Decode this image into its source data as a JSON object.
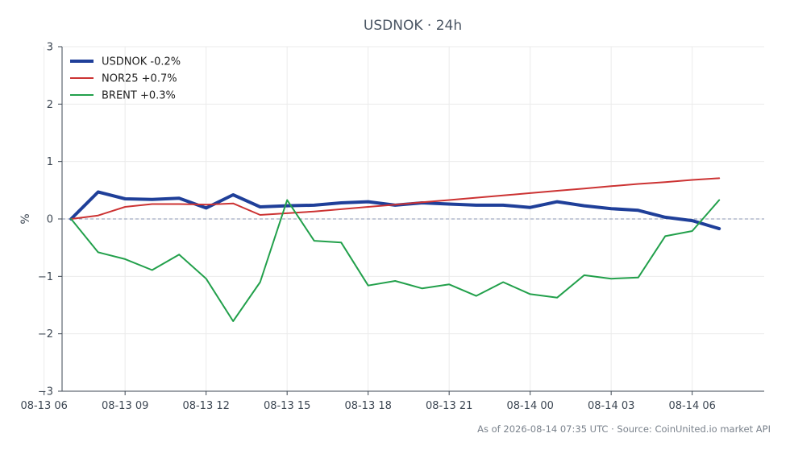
{
  "chart_data": {
    "type": "line",
    "title": "USDNOK · 24h",
    "ylabel": "%",
    "xlabel": "",
    "ylim": [
      -3,
      3
    ],
    "yticks": [
      -3,
      -2,
      -1,
      0,
      1,
      2,
      3
    ],
    "ytick_labels": [
      "−3",
      "−2",
      "−1",
      "0",
      "1",
      "2",
      "3"
    ],
    "xlim": [
      "2026-08-13 06:40",
      "2026-08-14 08:40"
    ],
    "xticks": [
      "2026-08-13 06:00",
      "2026-08-13 09:00",
      "2026-08-13 12:00",
      "2026-08-13 15:00",
      "2026-08-13 18:00",
      "2026-08-13 21:00",
      "2026-08-14 00:00",
      "2026-08-14 03:00",
      "2026-08-14 06:00"
    ],
    "xtick_labels": [
      "08-13 06",
      "08-13 09",
      "08-13 12",
      "08-13 15",
      "08-13 18",
      "08-13 21",
      "08-14 00",
      "08-14 03",
      "08-14 06"
    ],
    "grid": true,
    "legend_position": "top-left",
    "zero_line": 0,
    "x": [
      "2026-08-13 07:00",
      "2026-08-13 08:00",
      "2026-08-13 09:00",
      "2026-08-13 10:00",
      "2026-08-13 11:00",
      "2026-08-13 12:00",
      "2026-08-13 13:00",
      "2026-08-13 14:00",
      "2026-08-13 15:00",
      "2026-08-13 16:00",
      "2026-08-13 17:00",
      "2026-08-13 18:00",
      "2026-08-13 19:00",
      "2026-08-13 20:00",
      "2026-08-13 21:00",
      "2026-08-13 22:00",
      "2026-08-13 23:00",
      "2026-08-14 00:00",
      "2026-08-14 01:00",
      "2026-08-14 02:00",
      "2026-08-14 03:00",
      "2026-08-14 04:00",
      "2026-08-14 05:00",
      "2026-08-14 06:00",
      "2026-08-14 07:00"
    ],
    "series": [
      {
        "name": "USDNOK -0.2%",
        "color": "#1f3f99",
        "width": 4,
        "values": [
          0.0,
          0.47,
          0.35,
          0.34,
          0.36,
          0.19,
          0.42,
          0.21,
          0.23,
          0.24,
          0.28,
          0.3,
          0.24,
          0.28,
          0.26,
          0.24,
          0.24,
          0.2,
          0.3,
          0.23,
          0.18,
          0.15,
          0.03,
          -0.03,
          -0.17
        ]
      },
      {
        "name": "NOR25 +0.7%",
        "color": "#cc3333",
        "width": 2,
        "values": [
          0.0,
          0.06,
          0.21,
          0.26,
          0.26,
          0.25,
          0.27,
          0.07,
          0.1,
          0.13,
          0.17,
          0.21,
          0.25,
          0.29,
          0.33,
          0.37,
          0.41,
          0.45,
          0.49,
          0.53,
          0.57,
          0.61,
          0.64,
          0.68,
          0.71
        ]
      },
      {
        "name": "BRENT +0.3%",
        "color": "#22a04b",
        "width": 2,
        "values": [
          0.0,
          -0.58,
          -0.7,
          -0.89,
          -0.62,
          -1.04,
          -1.78,
          -1.1,
          0.33,
          -0.38,
          -0.41,
          -1.16,
          -1.08,
          -1.21,
          -1.14,
          -1.34,
          -1.1,
          -1.31,
          -1.37,
          -0.98,
          -1.04,
          -1.02,
          -0.3,
          -0.21,
          0.33
        ]
      }
    ]
  },
  "footer": {
    "source_text": "As of 2026-08-14 07:35 UTC · Source: CoinUnited.io market API"
  }
}
